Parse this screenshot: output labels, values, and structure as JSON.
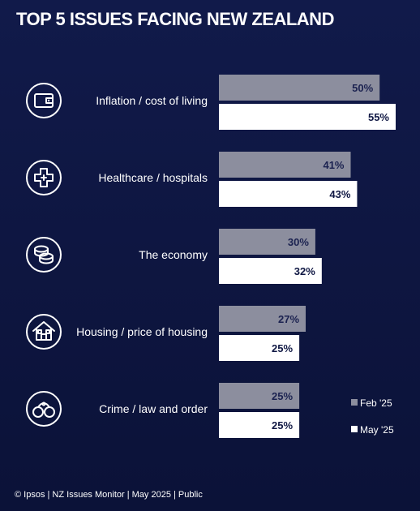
{
  "title": "TOP 5 ISSUES FACING NEW ZEALAND",
  "footer": "© Ipsos | NZ Issues Monitor | May 2025 | Public",
  "colors": {
    "feb": "#8c8e9e",
    "may": "#ffffff",
    "background": "#0f1743",
    "text_on_feb": "#1b2250",
    "text_on_may": "#0f1743"
  },
  "chart_data": {
    "type": "bar",
    "orientation": "horizontal",
    "categories": [
      "Inflation / cost of living",
      "Healthcare / hospitals",
      "The economy",
      "Housing / price of housing",
      "Crime / law and order"
    ],
    "category_icons": [
      "wallet-icon",
      "medical-cross-icon",
      "coins-icon",
      "house-icon",
      "handcuffs-icon"
    ],
    "series": [
      {
        "name": "Feb '25",
        "values": [
          50,
          41,
          30,
          27,
          25
        ]
      },
      {
        "name": "May '25",
        "values": [
          55,
          43,
          32,
          25,
          25
        ]
      }
    ],
    "value_suffix": "%",
    "xlim": [
      0,
      55
    ],
    "legend_position": "bottom-right",
    "grid": false
  }
}
